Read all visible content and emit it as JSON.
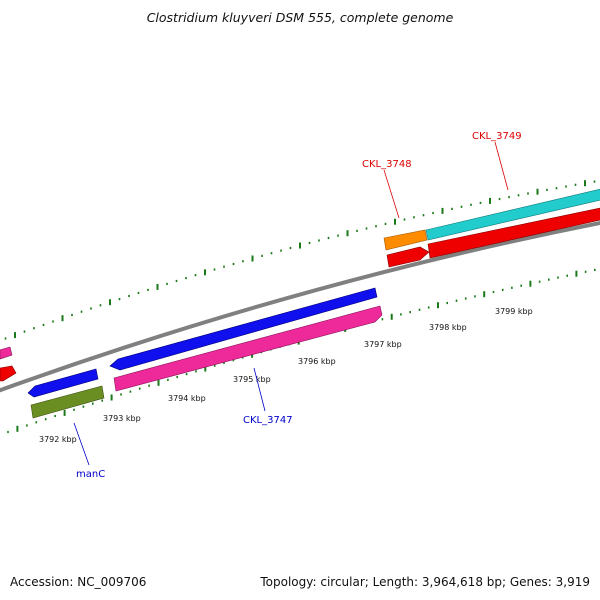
{
  "title": "Clostridium kluyveri DSM 555, complete genome",
  "footer": {
    "accession": "Accession: NC_009706",
    "summary": "Topology: circular; Length: 3,964,618 bp; Genes: 3,919"
  },
  "colors": {
    "backbone": "#808080",
    "tick": "#1a7a1a",
    "label_red": "#dd0000",
    "label_blue": "#0000cc",
    "gene_blue": "#1010ee",
    "gene_magenta": "#ee2a9a",
    "gene_olive": "#6b8e23",
    "gene_orange": "#ff8c00",
    "gene_cyan": "#22cccc",
    "gene_red": "#ee0000"
  },
  "tick_labels": [
    "3792 kbp",
    "3793 kbp",
    "3794 kbp",
    "3795 kbp",
    "3796 kbp",
    "3797 kbp",
    "3798 kbp",
    "3799 kbp"
  ],
  "gene_labels": [
    "manC",
    "CKL_3747",
    "CKL_3748",
    "CKL_3749"
  ]
}
